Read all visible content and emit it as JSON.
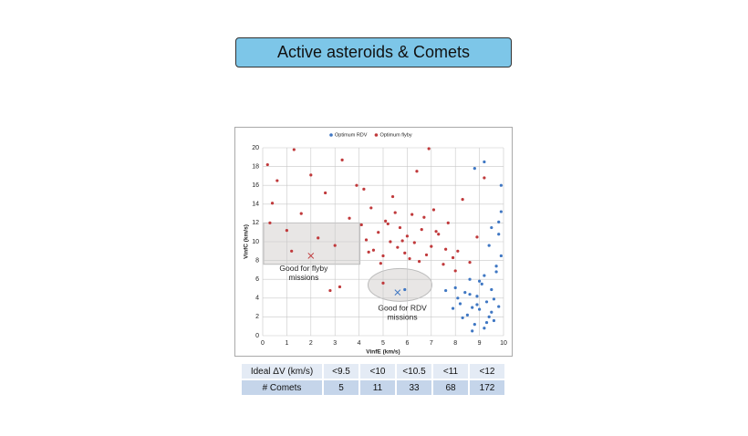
{
  "title": "Active asteroids & Comets",
  "chart_data": {
    "type": "scatter",
    "x_label": "VinfE (km/s)",
    "y_label": "VinfC (km/s)",
    "xlim": [
      0,
      10
    ],
    "xticks": [
      0,
      1,
      2,
      3,
      4,
      5,
      6,
      7,
      8,
      9,
      10
    ],
    "ylim": [
      0,
      20
    ],
    "yticks": [
      0,
      2,
      4,
      6,
      8,
      10,
      12,
      14,
      16,
      18,
      20
    ],
    "grid": true,
    "legend": "top",
    "series": [
      {
        "name": "Optimum RDV",
        "color": "#3f77c3",
        "x": [
          8.0,
          8.2,
          8.4,
          8.5,
          8.6,
          8.7,
          8.8,
          8.9,
          9.0,
          9.1,
          9.2,
          9.3,
          9.4,
          9.5,
          9.6,
          9.7,
          9.8,
          9.9,
          8.3,
          8.6,
          8.9,
          9.2,
          9.5,
          9.8,
          8.1,
          8.7,
          9.0,
          9.3,
          9.6,
          9.9,
          7.6,
          7.9,
          9.4,
          9.7,
          9.9,
          9.8,
          9.5,
          8.8,
          9.2,
          5.9
        ],
        "y": [
          5.1,
          3.4,
          4.6,
          2.2,
          6.0,
          3.0,
          1.2,
          4.2,
          2.8,
          5.5,
          0.8,
          3.6,
          2.0,
          4.9,
          1.6,
          6.8,
          3.1,
          8.5,
          1.9,
          4.4,
          3.3,
          6.4,
          2.5,
          10.8,
          4.0,
          0.5,
          5.8,
          1.4,
          3.9,
          13.2,
          4.8,
          2.9,
          9.6,
          7.4,
          16.0,
          12.1,
          11.5,
          17.8,
          18.5,
          4.9
        ]
      },
      {
        "name": "Optimum flyby",
        "color": "#c0393b",
        "x": [
          0.2,
          0.4,
          0.6,
          1.0,
          1.3,
          1.6,
          2.0,
          2.3,
          2.6,
          3.0,
          3.3,
          3.6,
          3.9,
          4.1,
          4.3,
          4.5,
          4.6,
          4.8,
          5.0,
          5.1,
          5.3,
          5.4,
          5.6,
          5.7,
          5.9,
          6.0,
          6.2,
          6.3,
          6.5,
          6.6,
          6.8,
          7.0,
          7.1,
          7.3,
          7.5,
          7.7,
          7.9,
          8.1,
          8.3,
          8.6,
          8.9,
          9.2,
          4.4,
          4.9,
          5.2,
          5.5,
          5.8,
          6.1,
          6.4,
          6.7,
          7.2,
          7.6,
          8.0,
          3.2,
          2.8,
          1.2,
          0.3,
          5.0,
          6.9,
          4.2
        ],
        "y": [
          18.2,
          14.1,
          16.5,
          11.2,
          19.8,
          13.0,
          17.1,
          10.4,
          15.2,
          9.6,
          18.7,
          12.5,
          16.0,
          11.8,
          10.2,
          13.6,
          9.1,
          11.0,
          8.5,
          12.2,
          10.0,
          14.8,
          9.4,
          11.5,
          8.8,
          10.6,
          12.9,
          9.9,
          7.9,
          11.3,
          8.6,
          9.5,
          13.4,
          10.8,
          7.6,
          12.0,
          8.3,
          9.0,
          14.5,
          7.8,
          10.5,
          16.8,
          8.9,
          7.7,
          11.9,
          13.1,
          10.1,
          8.2,
          17.5,
          12.6,
          11.1,
          9.2,
          6.9,
          5.2,
          4.8,
          9.0,
          12.0,
          5.6,
          19.9,
          15.6
        ]
      }
    ],
    "markers": [
      {
        "x": 2.0,
        "y": 8.5,
        "color": "#c0393b"
      },
      {
        "x": 5.6,
        "y": 4.6,
        "color": "#3f77c3"
      }
    ],
    "annotations": [
      {
        "lines": [
          "Good for flyby",
          "missions"
        ],
        "x": 1.7,
        "y": 7.1
      },
      {
        "lines": [
          "Good for RDV",
          "missions"
        ],
        "x": 5.8,
        "y": 2.9
      }
    ]
  },
  "table": {
    "rows": [
      [
        "Ideal ΔV (km/s)",
        "<9.5",
        "<10",
        "<10.5",
        "<11",
        "<12"
      ],
      [
        "# Comets",
        "5",
        "11",
        "33",
        "68",
        "172"
      ]
    ]
  }
}
